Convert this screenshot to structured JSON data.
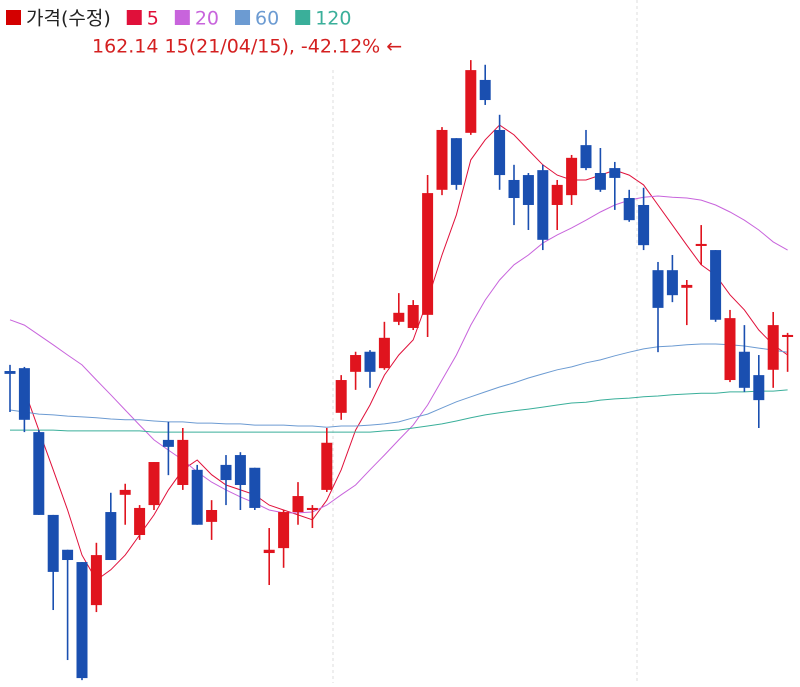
{
  "chart_data": {
    "type": "candlestick",
    "annotation": "162.14 15(21/04/15), -42.12% ←",
    "ylim": [
      10.2,
      176.8
    ],
    "price": {
      "name": "가격(수정)",
      "color": "#d40000",
      "up_color": "#e0141e",
      "down_color": "#1a4fb0",
      "open": [
        86.3,
        87.0,
        71.4,
        51.2,
        42.7,
        39.7,
        29.2,
        51.9,
        56.1,
        46.3,
        53.6,
        69.5,
        58.5,
        62.2,
        49.5,
        63.4,
        65.8,
        62.7,
        41.9,
        43.1,
        51.9,
        52.4,
        57.3,
        76.1,
        86.1,
        91.0,
        87.0,
        98.3,
        96.8,
        100.0,
        130.5,
        143.1,
        144.4,
        157.3,
        145.1,
        132.9,
        134.1,
        135.3,
        126.8,
        129.2,
        141.4,
        134.6,
        135.8,
        128.5,
        126.8,
        110.9,
        110.9,
        106.6,
        116.8,
        115.8,
        84.1,
        91.0,
        85.3,
        86.6,
        94.6
      ],
      "high": [
        87.8,
        87.3,
        71.9,
        51.2,
        42.7,
        39.7,
        44.4,
        56.6,
        58.8,
        53.6,
        64.1,
        73.9,
        72.4,
        63.4,
        54.8,
        65.8,
        66.5,
        62.7,
        48.0,
        52.4,
        59.2,
        53.6,
        72.4,
        85.3,
        91.0,
        91.4,
        98.3,
        105.3,
        103.6,
        134.1,
        145.8,
        143.1,
        162.14,
        161.0,
        148.8,
        136.6,
        134.6,
        136.6,
        132.9,
        139.0,
        145.1,
        140.7,
        137.3,
        130.5,
        131.0,
        112.9,
        114.6,
        108.5,
        121.9,
        115.8,
        101.2,
        97.5,
        90.2,
        100.7,
        95.6
      ],
      "low": [
        76.3,
        71.4,
        51.2,
        28.0,
        15.8,
        10.9,
        27.5,
        40.2,
        48.8,
        45.1,
        52.4,
        60.9,
        57.3,
        48.8,
        45.1,
        53.6,
        52.4,
        52.4,
        34.1,
        38.3,
        48.8,
        48.0,
        56.8,
        74.4,
        81.7,
        82.2,
        86.6,
        97.5,
        96.3,
        94.6,
        129.2,
        130.5,
        143.9,
        151.2,
        130.5,
        121.9,
        120.7,
        115.8,
        120.7,
        126.8,
        135.3,
        130.0,
        125.6,
        122.7,
        115.8,
        90.9,
        103.1,
        97.5,
        112.2,
        98.3,
        83.6,
        81.2,
        72.4,
        82.2,
        86.1
      ],
      "close": [
        85.6,
        74.4,
        51.2,
        37.3,
        40.2,
        11.4,
        41.4,
        40.2,
        57.3,
        52.9,
        64.1,
        67.8,
        69.5,
        48.8,
        52.4,
        59.7,
        58.5,
        52.9,
        42.7,
        51.9,
        55.8,
        52.9,
        68.8,
        84.1,
        90.2,
        86.1,
        94.4,
        100.5,
        102.4,
        129.7,
        145.1,
        131.7,
        159.7,
        152.4,
        134.1,
        128.5,
        126.8,
        118.3,
        131.7,
        138.3,
        135.8,
        130.5,
        133.4,
        123.1,
        117.0,
        101.7,
        104.8,
        107.3,
        117.3,
        98.8,
        99.2,
        82.2,
        79.2,
        97.5,
        95.1
      ]
    },
    "series": [
      {
        "name": "5",
        "color": "#e0103a",
        "values": [
          null,
          81.7,
          71.9,
          62.2,
          52.4,
          41.4,
          35.3,
          37.8,
          41.4,
          46.3,
          51.2,
          57.3,
          62.2,
          64.6,
          61.0,
          58.5,
          57.3,
          56.1,
          53.6,
          52.4,
          51.2,
          50.0,
          54.8,
          62.2,
          71.9,
          78.0,
          85.3,
          90.2,
          93.9,
          103.6,
          114.6,
          124.4,
          137.8,
          142.7,
          146.3,
          143.9,
          140.2,
          136.6,
          134.1,
          132.9,
          132.9,
          134.1,
          135.3,
          134.1,
          131.7,
          126.8,
          121.9,
          117.0,
          112.2,
          109.7,
          104.9,
          101.2,
          96.3,
          92.7,
          90.2
        ]
      },
      {
        "name": "20",
        "color": "#c864dc",
        "values": [
          98.8,
          97.5,
          95.1,
          92.7,
          90.2,
          87.8,
          84.1,
          80.5,
          76.8,
          73.1,
          69.5,
          67.0,
          64.6,
          61.7,
          59.2,
          57.3,
          55.6,
          54.1,
          52.4,
          51.7,
          51.7,
          51.9,
          53.6,
          56.1,
          58.5,
          62.2,
          65.8,
          69.5,
          73.1,
          78.0,
          84.1,
          90.2,
          97.5,
          103.6,
          108.5,
          112.2,
          114.6,
          117.5,
          119.5,
          121.2,
          123.1,
          125.1,
          126.8,
          128.0,
          128.7,
          129.0,
          128.7,
          128.5,
          128.0,
          126.8,
          125.1,
          123.1,
          120.7,
          117.8,
          115.8
        ]
      },
      {
        "name": "60",
        "color": "#6c9bd2",
        "values": [
          76.8,
          76.3,
          75.8,
          75.6,
          75.3,
          75.1,
          74.9,
          74.6,
          74.4,
          74.4,
          74.1,
          73.9,
          73.9,
          73.6,
          73.6,
          73.4,
          73.4,
          73.1,
          73.1,
          73.1,
          72.9,
          72.9,
          72.6,
          72.9,
          72.9,
          73.1,
          73.4,
          73.9,
          74.9,
          75.8,
          77.3,
          78.8,
          80.0,
          81.2,
          82.4,
          83.4,
          84.6,
          85.6,
          86.6,
          87.3,
          88.3,
          89.0,
          90.0,
          90.9,
          91.7,
          92.2,
          92.4,
          92.7,
          92.9,
          92.9,
          92.7,
          92.4,
          91.9,
          91.4,
          90.9
        ]
      },
      {
        "name": "120",
        "color": "#3aaf9a",
        "values": [
          71.9,
          71.9,
          71.9,
          71.9,
          71.7,
          71.7,
          71.7,
          71.7,
          71.7,
          71.7,
          71.4,
          71.4,
          71.4,
          71.4,
          71.4,
          71.4,
          71.4,
          71.4,
          71.4,
          71.4,
          71.4,
          71.4,
          71.4,
          71.4,
          71.4,
          71.4,
          71.7,
          71.9,
          72.4,
          72.9,
          73.4,
          74.1,
          74.9,
          75.6,
          76.1,
          76.6,
          77.0,
          77.5,
          78.0,
          78.5,
          78.7,
          79.2,
          79.5,
          79.7,
          80.0,
          80.2,
          80.5,
          80.7,
          80.9,
          80.9,
          81.2,
          81.2,
          81.4,
          81.4,
          81.7
        ]
      }
    ]
  }
}
